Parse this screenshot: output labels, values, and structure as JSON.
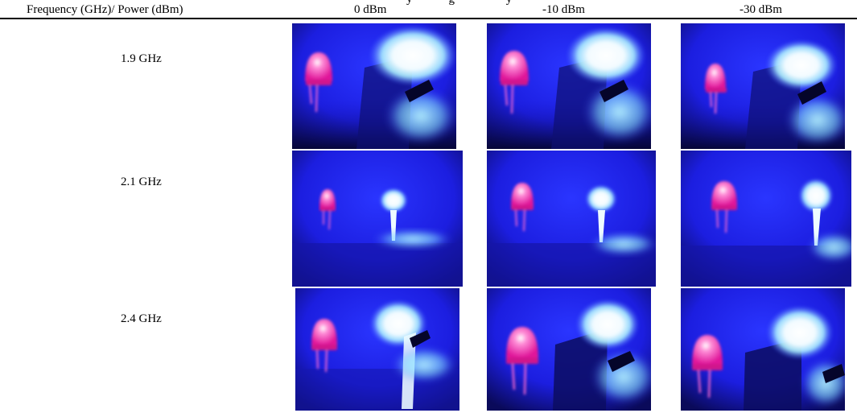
{
  "caption_fragment": "y            g                 y",
  "header": {
    "col1": "Frequency (GHz)/ Power (dBm)",
    "col2": "0 dBm",
    "col3": "-10 dBm",
    "col4": "-30 dBm"
  },
  "rows": [
    {
      "label": "1.9 GHz"
    },
    {
      "label": "2.1 GHz"
    },
    {
      "label": "2.4 GHz"
    }
  ],
  "colors": {
    "background_blue": "#1f1ee6",
    "led_pink": "#ff3aa8",
    "glow_white": "#f4fbff",
    "glow_cyan": "#9ef4ff"
  }
}
